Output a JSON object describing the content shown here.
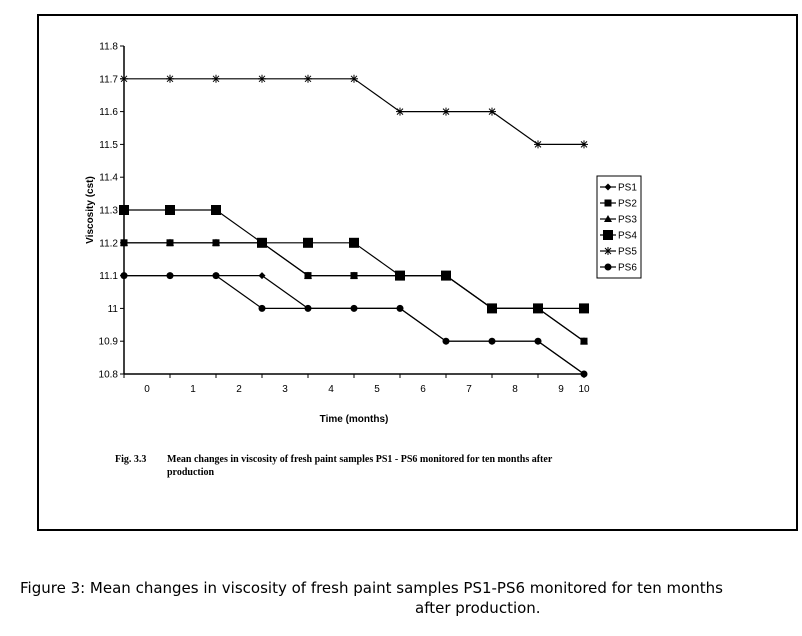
{
  "chart_data": {
    "type": "line",
    "title": "",
    "xlabel": "Time (months)",
    "ylabel": "Viscosity (cst)",
    "x": [
      0,
      1,
      2,
      3,
      4,
      5,
      6,
      7,
      8,
      9,
      10
    ],
    "xticks": [
      "0",
      "1",
      "2",
      "3",
      "4",
      "5",
      "6",
      "7",
      "8",
      "9",
      "10"
    ],
    "yticks": [
      "10.8",
      "10.9",
      "11",
      "11.1",
      "11.2",
      "11.3",
      "11.4",
      "11.5",
      "11.6",
      "11.7",
      "11.8"
    ],
    "ylim": [
      10.8,
      11.8
    ],
    "grid": false,
    "legend_position": "right",
    "series": [
      {
        "name": "PS1",
        "marker": "diamond",
        "values": [
          11.1,
          11.1,
          11.1,
          11.1,
          11.0,
          11.0,
          11.0,
          10.9,
          10.9,
          10.9,
          10.8
        ]
      },
      {
        "name": "PS2",
        "marker": "square-small",
        "values": [
          11.2,
          11.2,
          11.2,
          11.2,
          11.1,
          11.1,
          11.1,
          11.1,
          11.0,
          11.0,
          10.9
        ]
      },
      {
        "name": "PS3",
        "marker": "triangle",
        "values": [
          11.2,
          11.2,
          11.2,
          11.2,
          11.1,
          11.1,
          11.1,
          11.1,
          11.0,
          11.0,
          10.9
        ]
      },
      {
        "name": "PS4",
        "marker": "square-large",
        "values": [
          11.3,
          11.3,
          11.3,
          11.2,
          11.2,
          11.2,
          11.1,
          11.1,
          11.0,
          11.0,
          11.0
        ]
      },
      {
        "name": "PS5",
        "marker": "star",
        "values": [
          11.7,
          11.7,
          11.7,
          11.7,
          11.7,
          11.7,
          11.6,
          11.6,
          11.6,
          11.5,
          11.5
        ]
      },
      {
        "name": "PS6",
        "marker": "circle",
        "values": [
          11.1,
          11.1,
          11.1,
          11.0,
          11.0,
          11.0,
          11.0,
          10.9,
          10.9,
          10.9,
          10.8
        ]
      }
    ]
  },
  "caption": {
    "fig_number": "Fig. 3.3",
    "fig_text": "Mean changes in viscosity of fresh paint samples PS1 - PS6 monitored for ten months after production"
  },
  "outer_caption": {
    "line1": "Figure 3: Mean changes in viscosity of fresh paint samples PS1-PS6 monitored for ten months",
    "line2": "after production."
  }
}
